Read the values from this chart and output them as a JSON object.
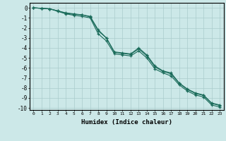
{
  "xlabel": "Humidex (Indice chaleur)",
  "ylabel": "",
  "background_color": "#cce8e8",
  "grid_color": "#aacccc",
  "line_color": "#1a6b5a",
  "xlim": [
    -0.5,
    23.5
  ],
  "ylim": [
    -10.2,
    0.5
  ],
  "x": [
    0,
    1,
    2,
    3,
    4,
    5,
    6,
    7,
    8,
    9,
    10,
    11,
    12,
    13,
    14,
    15,
    16,
    17,
    18,
    19,
    20,
    21,
    22,
    23
  ],
  "series1": [
    0,
    -0.05,
    -0.1,
    -0.3,
    -0.5,
    -0.6,
    -0.7,
    -0.85,
    -2.2,
    -3.0,
    -4.4,
    -4.5,
    -4.6,
    -4.0,
    -4.7,
    -5.8,
    -6.3,
    -6.5,
    -7.5,
    -8.1,
    -8.5,
    -8.7,
    -9.5,
    -9.7
  ],
  "series2": [
    0,
    -0.05,
    -0.1,
    -0.3,
    -0.55,
    -0.65,
    -0.7,
    -0.9,
    -2.3,
    -3.0,
    -4.45,
    -4.55,
    -4.65,
    -4.1,
    -4.8,
    -5.9,
    -6.35,
    -6.6,
    -7.55,
    -8.15,
    -8.55,
    -8.75,
    -9.55,
    -9.75
  ],
  "series3": [
    0,
    -0.05,
    -0.1,
    -0.35,
    -0.6,
    -0.75,
    -0.85,
    -1.0,
    -2.6,
    -3.3,
    -4.6,
    -4.7,
    -4.8,
    -4.3,
    -5.0,
    -6.1,
    -6.5,
    -6.8,
    -7.7,
    -8.3,
    -8.7,
    -8.9,
    -9.7,
    -9.9
  ]
}
